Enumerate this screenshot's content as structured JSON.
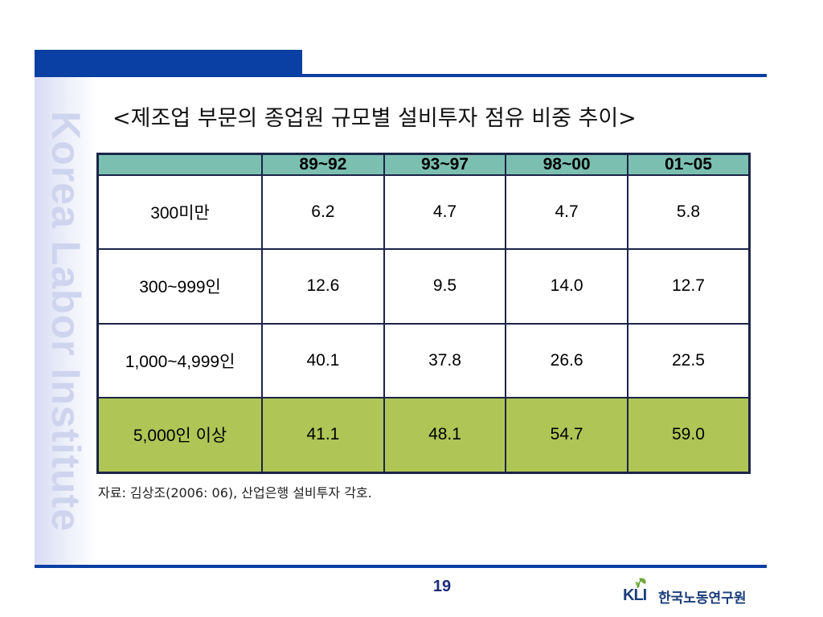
{
  "title": "<제조업 부문의 종업원 규모별 설비투자 점유 비중 추이>",
  "watermark": "Korea Labor Institute",
  "table": {
    "corner": "",
    "headers": [
      "89~92",
      "93~97",
      "98~00",
      "01~05"
    ],
    "rows": [
      {
        "label": "300미만",
        "values": [
          "6.2",
          "4.7",
          "4.7",
          "5.8"
        ]
      },
      {
        "label": "300~999인",
        "values": [
          "12.6",
          "9.5",
          "14.0",
          "12.7"
        ]
      },
      {
        "label": "1,000~4,999인",
        "values": [
          "40.1",
          "37.8",
          "26.6",
          "22.5"
        ]
      },
      {
        "label": "5,000인 이상",
        "values": [
          "41.1",
          "48.1",
          "54.7",
          "59.0"
        ]
      }
    ]
  },
  "source": "자료: 김상조(2006: 06), 산업은행 설비투자 각호.",
  "page_number": "19",
  "logo": {
    "abbr": "KLI",
    "name": "한국노동연구원",
    "icon": "leaf-icon"
  },
  "colors": {
    "accent_blue": "#0a3fa3",
    "header_teal": "#7bbfb1",
    "highlight_green": "#afc556",
    "border_navy": "#1c2448"
  }
}
